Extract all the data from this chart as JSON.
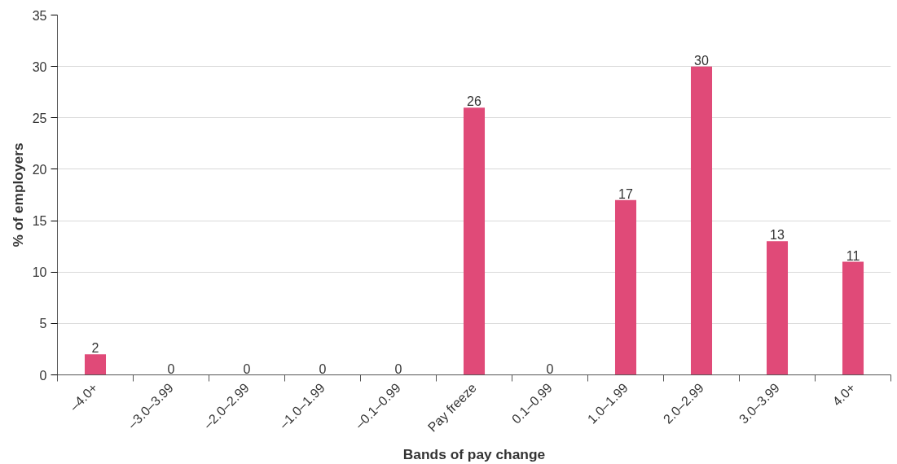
{
  "chart_data": {
    "type": "bar",
    "xlabel": "Bands of pay change",
    "ylabel": "% of employers",
    "categories": [
      "–4.0+",
      "–3.0–3.99",
      "–2.0–2.99",
      "–1.0–1.99",
      "–0.1–0.99",
      "Pay freeze",
      "0.1–0.99",
      "1.0–1.99",
      "2.0–2.99",
      "3.0–3.99",
      "4.0+"
    ],
    "values": [
      2,
      0,
      0,
      0,
      0,
      26,
      0,
      17,
      30,
      13,
      11
    ],
    "color": "#e04a78",
    "ylim": [
      0,
      35
    ],
    "yticks": [
      0,
      5,
      10,
      15,
      20,
      25,
      30,
      35
    ],
    "grid": "y",
    "data_labels": true
  }
}
